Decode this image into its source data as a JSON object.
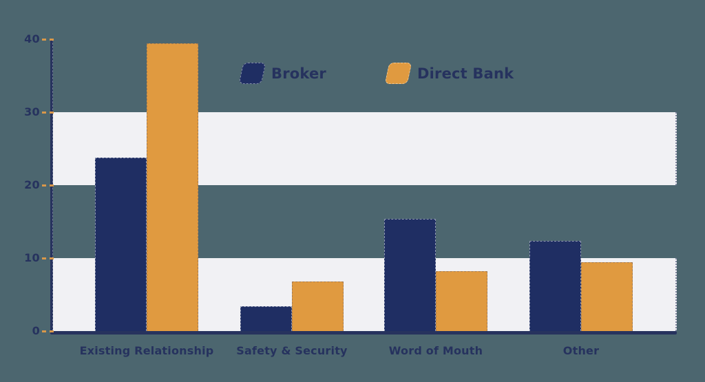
{
  "page": {
    "background_color": "#4c666f"
  },
  "chart_data": {
    "type": "bar",
    "title": "",
    "xlabel": "",
    "ylabel": "",
    "categories": [
      "Existing Relationship",
      "Safety & Security",
      "Word of Mouth",
      "Other"
    ],
    "series": [
      {
        "name": "Broker",
        "color": "#1f2e63",
        "values": [
          23.8,
          3.4,
          15.4,
          12.4
        ]
      },
      {
        "name": "Direct Bank",
        "color": "#e09a40",
        "values": [
          39.4,
          6.8,
          8.2,
          9.4
        ]
      }
    ],
    "ylim": [
      0,
      40
    ],
    "yticks": [
      0,
      10,
      20,
      30,
      40
    ],
    "grid": "alternating-horizontal-bands",
    "band_ranges": [
      [
        20,
        30
      ],
      [
        0,
        10
      ]
    ],
    "band_color": "#f1f1f4",
    "axis_color": "#27335e",
    "tick_color": "#d9984a",
    "label_color": "#26325e",
    "legend_position": "top-center"
  }
}
